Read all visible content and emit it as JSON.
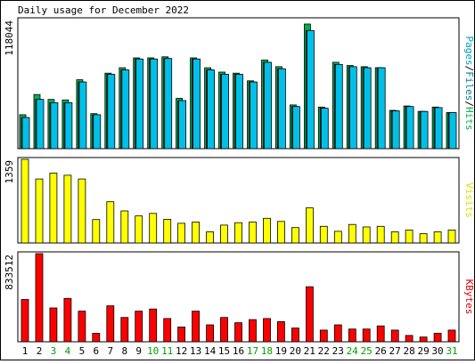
{
  "chart_data": {
    "title": "Daily usage for December 2022",
    "x_labels": [
      "1",
      "2",
      "3",
      "4",
      "5",
      "6",
      "7",
      "8",
      "9",
      "10",
      "11",
      "12",
      "13",
      "14",
      "15",
      "16",
      "17",
      "18",
      "19",
      "20",
      "21",
      "22",
      "23",
      "24",
      "25",
      "26",
      "27",
      "28",
      "29",
      "30",
      "31"
    ],
    "x_label_colors": [
      "#000000",
      "#000000",
      "#00A000",
      "#00A000",
      "#000000",
      "#000000",
      "#000000",
      "#000000",
      "#000000",
      "#00A000",
      "#00A000",
      "#000000",
      "#000000",
      "#000000",
      "#000000",
      "#000000",
      "#00A000",
      "#00A000",
      "#000000",
      "#000000",
      "#000000",
      "#000000",
      "#000000",
      "#00A000",
      "#00A000",
      "#000000",
      "#000000",
      "#000000",
      "#000000",
      "#000000",
      "#00A000"
    ],
    "charts": [
      {
        "type": "bar",
        "name": "hits-files-pages",
        "ymax_label": "118044",
        "ymax": 118044,
        "side_label": [
          {
            "text": "Pages",
            "color": "#00a0c8"
          },
          {
            "text": "/",
            "color": "#000000"
          },
          {
            "text": "Files",
            "color": "#0080a0"
          },
          {
            "text": "/",
            "color": "#000000"
          },
          {
            "text": "Hits",
            "color": "#00b050"
          }
        ],
        "series": [
          {
            "name": "Hits",
            "color": "#00B050",
            "values": [
              31000,
              49500,
              45000,
              44500,
              63000,
              32000,
              69000,
              74000,
              83000,
              83000,
              84000,
              46000,
              83000,
              74000,
              70000,
              69000,
              62000,
              81000,
              75000,
              40000,
              114000,
              38000,
              79000,
              76000,
              75000,
              74000,
              35000,
              39000,
              34000,
              38000,
              33000
            ]
          },
          {
            "name": "Files",
            "color": "#0078A0",
            "values": [
              28500,
              45000,
              42000,
              42000,
              61000,
              31000,
              68000,
              72000,
              82000,
              82000,
              82500,
              44000,
              82000,
              72000,
              68000,
              68000,
              61000,
              79000,
              73000,
              38500,
              108000,
              37000,
              77000,
              75000,
              74000,
              74000,
              34500,
              38500,
              34000,
              37500,
              33000
            ]
          },
          {
            "name": "Pages",
            "color": "#00C0E8",
            "values": [
              28500,
              45000,
              42000,
              42000,
              61000,
              31000,
              68000,
              72000,
              82000,
              82000,
              82500,
              44000,
              82000,
              72000,
              68000,
              68000,
              61000,
              79000,
              73000,
              38500,
              108000,
              37000,
              77000,
              75000,
              74000,
              74000,
              34500,
              38500,
              34000,
              37500,
              33000
            ]
          }
        ]
      },
      {
        "type": "bar",
        "name": "visits",
        "ymax_label": "1359",
        "ymax": 1359,
        "side_label": [
          {
            "text": "Visits",
            "color": "#e0e000"
          }
        ],
        "series": [
          {
            "name": "Visits",
            "color": "#FFFF00",
            "values": [
              1359,
              1040,
              1135,
              1100,
              1040,
              380,
              670,
              520,
              440,
              480,
              385,
              320,
              340,
              180,
              290,
              330,
              340,
              400,
              350,
              250,
              570,
              270,
              190,
              300,
              260,
              270,
              180,
              210,
              150,
              180,
              210
            ]
          }
        ]
      },
      {
        "type": "bar",
        "name": "kbytes",
        "ymax_label": "833512",
        "ymax": 833512,
        "side_label": [
          {
            "text": "KBytes",
            "color": "#e00000"
          }
        ],
        "series": [
          {
            "name": "KBytes",
            "color": "#FF0000",
            "values": [
              400000,
              833512,
              320000,
              410000,
              290000,
              80000,
              340000,
              230000,
              290000,
              310000,
              220000,
              140000,
              290000,
              160000,
              230000,
              180000,
              210000,
              220000,
              190000,
              130000,
              520000,
              110000,
              160000,
              120000,
              120000,
              150000,
              110000,
              60000,
              45000,
              80000,
              110000
            ]
          }
        ]
      }
    ]
  }
}
